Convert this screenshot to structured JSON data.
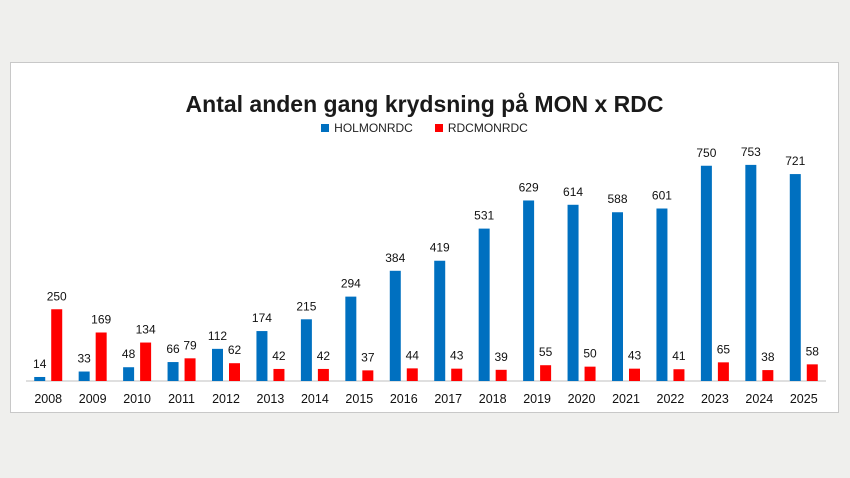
{
  "chart_data": {
    "type": "bar",
    "title": "Antal anden gang krydsning på MON x RDC",
    "xlabel": "",
    "ylabel": "",
    "categories": [
      "2008",
      "2009",
      "2010",
      "2011",
      "2012",
      "2013",
      "2014",
      "2015",
      "2016",
      "2017",
      "2018",
      "2019",
      "2020",
      "2021",
      "2022",
      "2023",
      "2024",
      "2025"
    ],
    "series": [
      {
        "name": "HOLMONRDC",
        "color": "#0070c0",
        "values": [
          14,
          33,
          48,
          66,
          112,
          174,
          215,
          294,
          384,
          419,
          531,
          629,
          614,
          588,
          601,
          750,
          753,
          721
        ]
      },
      {
        "name": "RDCMONRDC",
        "color": "#ff0000",
        "values": [
          250,
          169,
          134,
          79,
          62,
          42,
          42,
          37,
          44,
          43,
          39,
          55,
          50,
          43,
          41,
          65,
          38,
          58
        ]
      }
    ],
    "ylim": [
      0,
      760
    ],
    "grid": false,
    "legend_position": "top-center"
  }
}
